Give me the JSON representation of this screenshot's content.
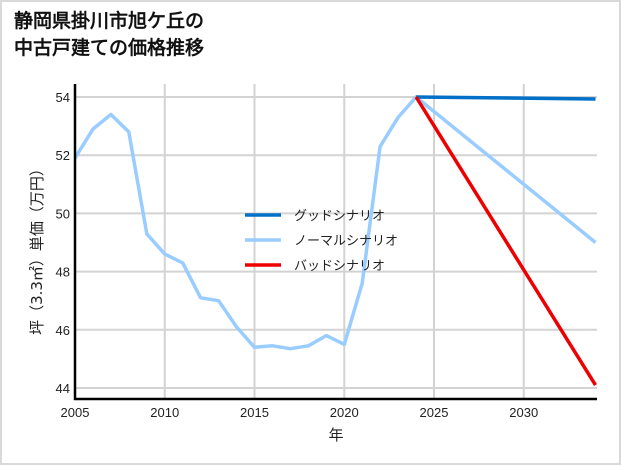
{
  "title": {
    "line1": "静岡県掛川市旭ケ丘の",
    "line2": "中古戸建ての価格推移"
  },
  "chart_data": {
    "type": "line",
    "title": "静岡県掛川市旭ケ丘の中古戸建ての価格推移",
    "xlabel": "年",
    "ylabel": "坪（3.3㎡）単価（万円）",
    "xlim": [
      2005,
      2034
    ],
    "ylim": [
      43.8,
      54.3
    ],
    "xticks": [
      "2005",
      "2010",
      "2015",
      "2020",
      "2025",
      "2030"
    ],
    "yticks": [
      "44",
      "46",
      "48",
      "50",
      "52",
      "54"
    ],
    "grid": true,
    "legend_position": "center",
    "series": [
      {
        "name": "グッドシナリオ",
        "color": "#0070c8",
        "x": [
          2024,
          2034
        ],
        "values": [
          54.0,
          53.93
        ]
      },
      {
        "name": "ノーマルシナリオ",
        "color": "#99ccff",
        "x": [
          2005,
          2006,
          2007,
          2008,
          2009,
          2010,
          2011,
          2012,
          2013,
          2014,
          2015,
          2016,
          2017,
          2018,
          2019,
          2020,
          2021,
          2022,
          2023,
          2024,
          2034
        ],
        "values": [
          51.9,
          52.9,
          53.4,
          52.8,
          49.3,
          48.6,
          48.3,
          47.1,
          47.0,
          46.1,
          45.4,
          45.45,
          45.35,
          45.45,
          45.8,
          45.5,
          47.6,
          52.3,
          53.3,
          54.0,
          49.0
        ]
      },
      {
        "name": "バッドシナリオ",
        "color": "#ee0000",
        "x": [
          2024,
          2034
        ],
        "values": [
          54.0,
          44.1
        ]
      }
    ]
  }
}
